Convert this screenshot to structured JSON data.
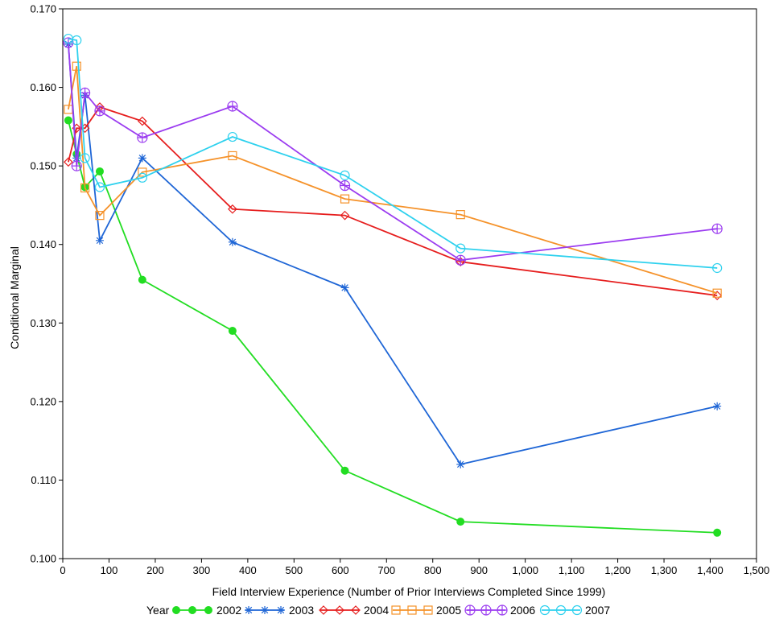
{
  "chart_data": {
    "type": "line",
    "title": "",
    "xlabel": "Field Interview Experience (Number of Prior Interviews Completed Since 1999)",
    "ylabel": "Conditional Marginal",
    "xlim": [
      0,
      1500
    ],
    "ylim": [
      0.1,
      0.17
    ],
    "x_ticks": [
      0,
      100,
      200,
      300,
      400,
      500,
      600,
      700,
      800,
      900,
      1000,
      1100,
      1200,
      1300,
      1400,
      1500
    ],
    "x_tick_labels": [
      "0",
      "100",
      "200",
      "300",
      "400",
      "500",
      "600",
      "700",
      "800",
      "900",
      "1,000",
      "1,100",
      "1,200",
      "1,300",
      "1,400",
      "1,500"
    ],
    "y_ticks": [
      0.1,
      0.11,
      0.12,
      0.13,
      0.14,
      0.15,
      0.16,
      0.17
    ],
    "y_tick_labels": [
      "0.100",
      "0.110",
      "0.120",
      "0.130",
      "0.140",
      "0.150",
      "0.160",
      "0.170"
    ],
    "grid": false,
    "legend": {
      "title": "Year",
      "placement": "bottom"
    },
    "series": [
      {
        "name": "2002",
        "color": "#22dd22",
        "marker": "filled-circle",
        "points": [
          [
            12,
            0.1558
          ],
          [
            30,
            0.1515
          ],
          [
            48,
            0.1473
          ],
          [
            80,
            0.1493
          ],
          [
            172,
            0.1355
          ],
          [
            367,
            0.129
          ],
          [
            610,
            0.1112
          ],
          [
            860,
            0.1047
          ],
          [
            1415,
            0.1033
          ]
        ]
      },
      {
        "name": "2003",
        "color": "#1f66d6",
        "marker": "asterisk",
        "points": [
          [
            12,
            0.1655
          ],
          [
            30,
            0.151
          ],
          [
            48,
            0.159
          ],
          [
            80,
            0.1405
          ],
          [
            172,
            0.151
          ],
          [
            367,
            0.1403
          ],
          [
            610,
            0.1345
          ],
          [
            860,
            0.112
          ],
          [
            1415,
            0.1194
          ]
        ]
      },
      {
        "name": "2004",
        "color": "#e61e1e",
        "marker": "diamond",
        "points": [
          [
            12,
            0.1505
          ],
          [
            30,
            0.1548
          ],
          [
            48,
            0.1548
          ],
          [
            80,
            0.1575
          ],
          [
            172,
            0.1557
          ],
          [
            367,
            0.1445
          ],
          [
            610,
            0.1437
          ],
          [
            860,
            0.1378
          ],
          [
            1415,
            0.1335
          ]
        ]
      },
      {
        "name": "2005",
        "color": "#f5922a",
        "marker": "square",
        "points": [
          [
            12,
            0.1572
          ],
          [
            30,
            0.1627
          ],
          [
            48,
            0.1472
          ],
          [
            80,
            0.1437
          ],
          [
            172,
            0.1492
          ],
          [
            367,
            0.1513
          ],
          [
            610,
            0.1458
          ],
          [
            860,
            0.1438
          ],
          [
            1415,
            0.1338
          ]
        ]
      },
      {
        "name": "2006",
        "color": "#9b3cf0",
        "marker": "circle-plus",
        "points": [
          [
            12,
            0.1657
          ],
          [
            30,
            0.15
          ],
          [
            48,
            0.1593
          ],
          [
            80,
            0.157
          ],
          [
            172,
            0.1536
          ],
          [
            367,
            0.1576
          ],
          [
            610,
            0.1475
          ],
          [
            860,
            0.138
          ],
          [
            1415,
            0.142
          ]
        ]
      },
      {
        "name": "2007",
        "color": "#2ed1ee",
        "marker": "open-circle",
        "points": [
          [
            12,
            0.1662
          ],
          [
            30,
            0.166
          ],
          [
            48,
            0.151
          ],
          [
            80,
            0.1473
          ],
          [
            172,
            0.1485
          ],
          [
            367,
            0.1537
          ],
          [
            610,
            0.1488
          ],
          [
            860,
            0.1395
          ],
          [
            1415,
            0.137
          ]
        ]
      }
    ]
  }
}
